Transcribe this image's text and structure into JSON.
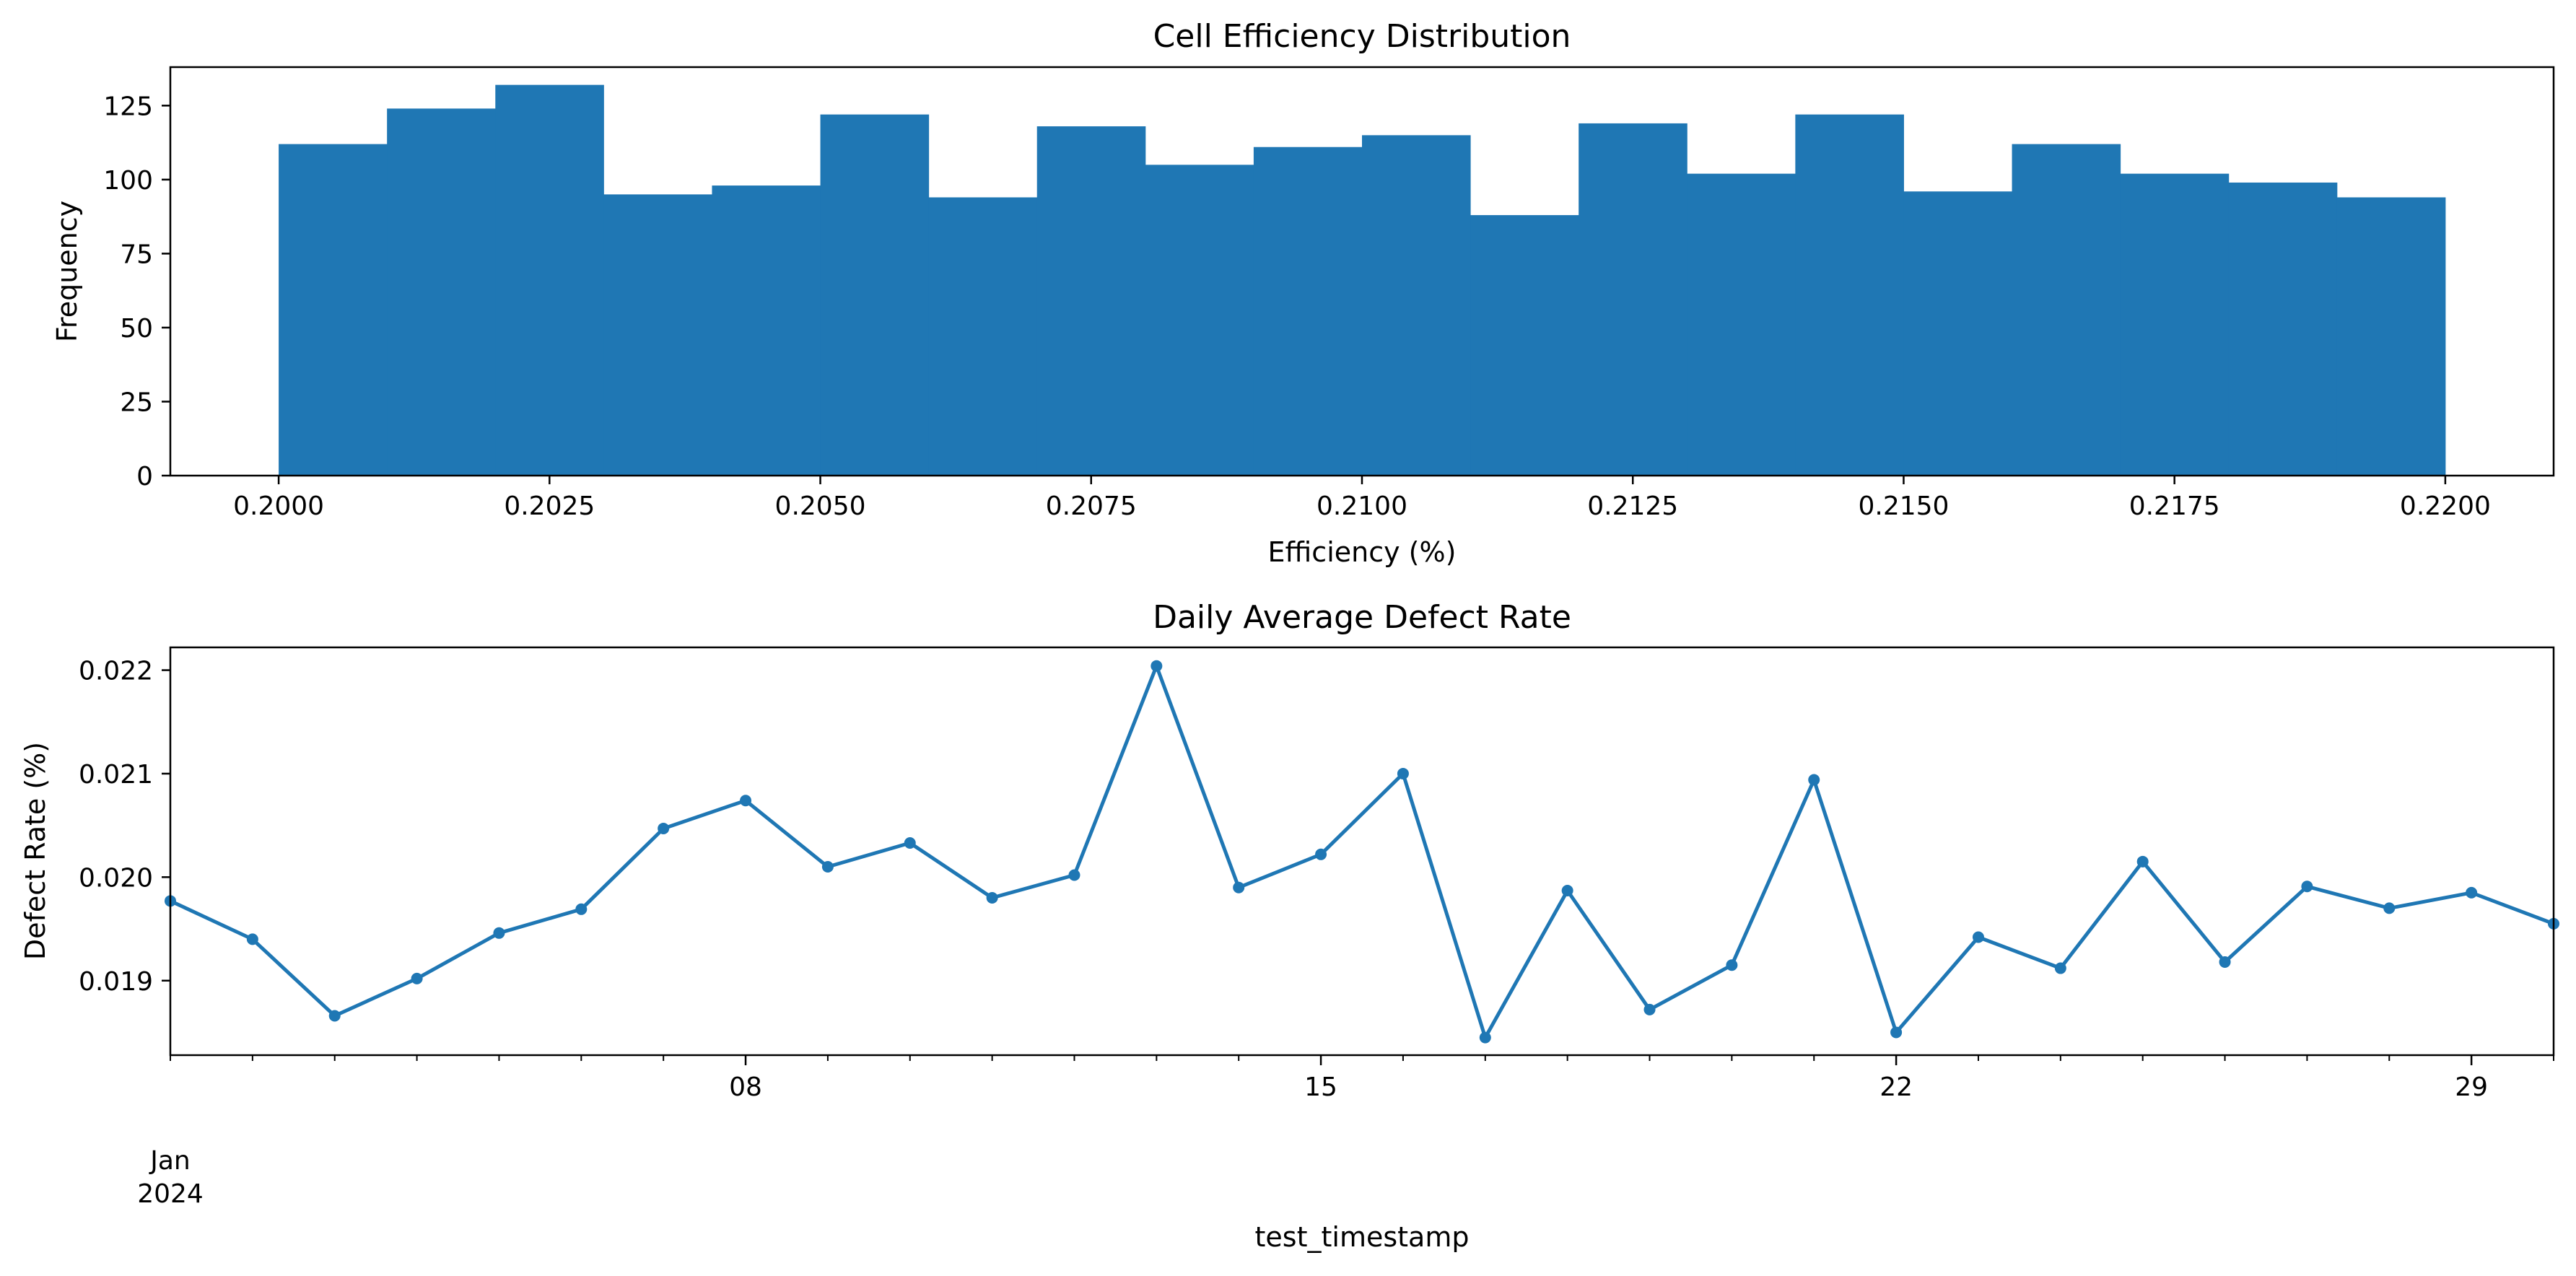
{
  "chart_data": [
    {
      "type": "histogram",
      "title": "Cell Efficiency Distribution",
      "xlabel": "Efficiency (%)",
      "ylabel": "Frequency",
      "xlim": [
        0.199,
        0.221
      ],
      "ylim": [
        0,
        138
      ],
      "xticks": [
        "0.2000",
        "0.2025",
        "0.2050",
        "0.2075",
        "0.2100",
        "0.2125",
        "0.2150",
        "0.2175",
        "0.2200"
      ],
      "yticks": [
        "0",
        "25",
        "50",
        "75",
        "100",
        "125"
      ],
      "bins": [
        {
          "start": 0.2,
          "end": 0.201,
          "count": 112
        },
        {
          "start": 0.201,
          "end": 0.202,
          "count": 124
        },
        {
          "start": 0.202,
          "end": 0.203,
          "count": 132
        },
        {
          "start": 0.203,
          "end": 0.204,
          "count": 95
        },
        {
          "start": 0.204,
          "end": 0.205,
          "count": 98
        },
        {
          "start": 0.205,
          "end": 0.206,
          "count": 122
        },
        {
          "start": 0.206,
          "end": 0.207,
          "count": 94
        },
        {
          "start": 0.207,
          "end": 0.208,
          "count": 118
        },
        {
          "start": 0.208,
          "end": 0.209,
          "count": 105
        },
        {
          "start": 0.209,
          "end": 0.21,
          "count": 111
        },
        {
          "start": 0.21,
          "end": 0.211,
          "count": 115
        },
        {
          "start": 0.211,
          "end": 0.212,
          "count": 88
        },
        {
          "start": 0.212,
          "end": 0.213,
          "count": 119
        },
        {
          "start": 0.213,
          "end": 0.214,
          "count": 102
        },
        {
          "start": 0.214,
          "end": 0.215,
          "count": 122
        },
        {
          "start": 0.215,
          "end": 0.216,
          "count": 96
        },
        {
          "start": 0.216,
          "end": 0.217,
          "count": 112
        },
        {
          "start": 0.217,
          "end": 0.218,
          "count": 102
        },
        {
          "start": 0.218,
          "end": 0.219,
          "count": 99
        },
        {
          "start": 0.219,
          "end": 0.22,
          "count": 94
        }
      ],
      "color": "#1f77b4",
      "grid": false
    },
    {
      "type": "line",
      "title": "Daily Average Defect Rate",
      "xlabel": "test_timestamp",
      "ylabel": "Defect Rate (%)",
      "xlim": [
        "2024-01-01",
        "2024-01-30"
      ],
      "ylim": [
        0.01828,
        0.02222
      ],
      "yticks": [
        "0.019",
        "0.020",
        "0.021",
        "0.022"
      ],
      "xticks_major": [
        {
          "date": "2024-01-08",
          "label": "08"
        },
        {
          "date": "2024-01-15",
          "label": "15"
        },
        {
          "date": "2024-01-22",
          "label": "22"
        },
        {
          "date": "2024-01-29",
          "label": "29"
        }
      ],
      "x_origin_label": [
        "Jan",
        "2024"
      ],
      "x": [
        "2024-01-01",
        "2024-01-02",
        "2024-01-03",
        "2024-01-04",
        "2024-01-05",
        "2024-01-06",
        "2024-01-07",
        "2024-01-08",
        "2024-01-09",
        "2024-01-10",
        "2024-01-11",
        "2024-01-12",
        "2024-01-13",
        "2024-01-14",
        "2024-01-15",
        "2024-01-16",
        "2024-01-17",
        "2024-01-18",
        "2024-01-19",
        "2024-01-20",
        "2024-01-21",
        "2024-01-22",
        "2024-01-23",
        "2024-01-24",
        "2024-01-25",
        "2024-01-26",
        "2024-01-27",
        "2024-01-28",
        "2024-01-29",
        "2024-01-30"
      ],
      "y": [
        0.01977,
        0.0194,
        0.01866,
        0.01902,
        0.01946,
        0.01969,
        0.02047,
        0.02074,
        0.0201,
        0.02033,
        0.0198,
        0.02002,
        0.02204,
        0.0199,
        0.02022,
        0.021,
        0.01845,
        0.01987,
        0.01872,
        0.01915,
        0.02094,
        0.0185,
        0.01942,
        0.01912,
        0.02015,
        0.01918,
        0.01991,
        0.0197,
        0.01985,
        0.01955
      ],
      "color": "#1f77b4",
      "marker": "circle",
      "grid": false
    }
  ]
}
